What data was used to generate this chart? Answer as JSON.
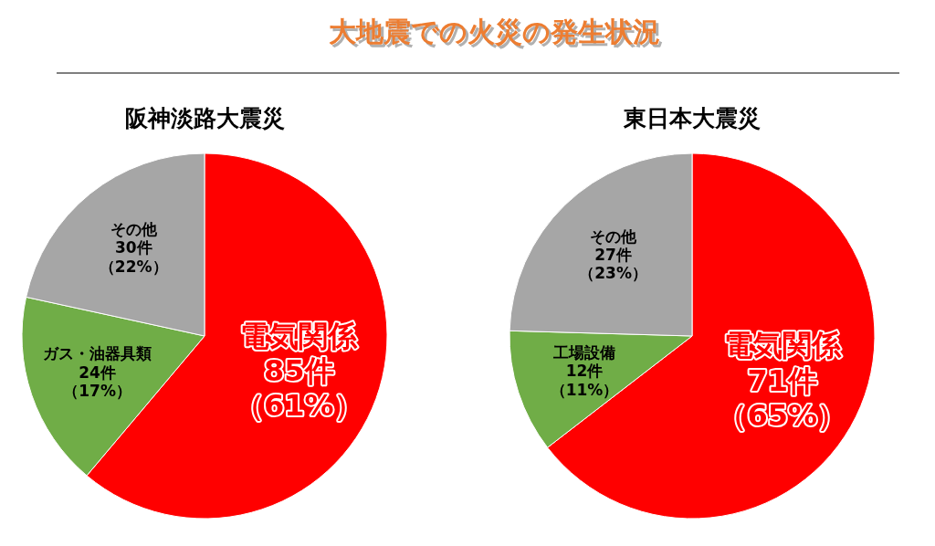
{
  "chart_data": [
    {
      "type": "other",
      "title": "大地震での火災の発生状況"
    },
    {
      "type": "pie",
      "title": "阪神淡路大震災",
      "categories": [
        "電気関係",
        "ガス・油器具類",
        "その他"
      ],
      "values": [
        85,
        24,
        30
      ],
      "value_labels": [
        "85件（61%）",
        "24件（17%）",
        "30件（22%）"
      ],
      "colors": [
        "#ff0000",
        "#70ad47",
        "#a6a6a6"
      ]
    },
    {
      "type": "pie",
      "title": "東日本大震災",
      "categories": [
        "電気関係",
        "工場設備",
        "その他"
      ],
      "values": [
        71,
        12,
        27
      ],
      "value_labels": [
        "71件（65%）",
        "12件（11%）",
        "27件（23%）"
      ],
      "colors": [
        "#ff0000",
        "#70ad47",
        "#a6a6a6"
      ]
    }
  ]
}
